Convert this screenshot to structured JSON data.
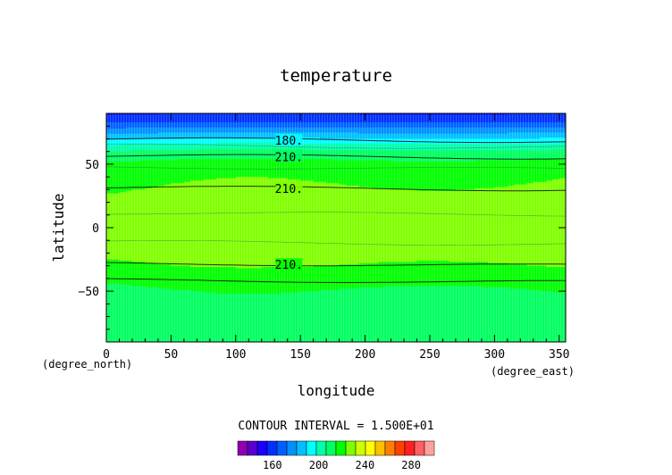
{
  "chart_data": {
    "type": "heatmap",
    "title": "temperature",
    "xlabel": "longitude",
    "ylabel": "latitude",
    "x_unit": "(degree_east)",
    "y_unit": "(degree_north)",
    "xlim": [
      0,
      355
    ],
    "ylim": [
      -90,
      90
    ],
    "x_ticks": [
      0,
      50,
      100,
      150,
      200,
      250,
      300,
      350
    ],
    "y_ticks": [
      -50,
      0,
      50
    ],
    "contour_interval_text": "CONTOUR INTERVAL = 1.500E+01",
    "contour_labels": [
      {
        "text": "180.",
        "lon": 128,
        "lat": 69
      },
      {
        "text": "210.",
        "lon": 128,
        "lat": 56
      },
      {
        "text": "210.",
        "lon": 128,
        "lat": 31
      },
      {
        "text": "210.",
        "lon": 128,
        "lat": -29
      }
    ],
    "field_profile": {
      "lat": [
        90,
        85,
        80,
        75,
        70,
        65,
        60,
        55,
        50,
        40,
        30,
        20,
        10,
        0,
        -10,
        -20,
        -30,
        -40,
        -50,
        -60,
        -70,
        -80,
        -90
      ],
      "temp": [
        155,
        160,
        170,
        180,
        190,
        200,
        208,
        213,
        218,
        222,
        224,
        226,
        228,
        231,
        229,
        226,
        223,
        218,
        214,
        212,
        209,
        208,
        207
      ]
    },
    "colorbar": {
      "colors": [
        "#9000b0",
        "#5a00cc",
        "#1a00ff",
        "#0030ff",
        "#0060ff",
        "#0090ff",
        "#00c0ff",
        "#00ffff",
        "#00ffaa",
        "#00ff60",
        "#00ff00",
        "#80ff00",
        "#ccff00",
        "#ffff00",
        "#ffc000",
        "#ff8000",
        "#ff4000",
        "#ff2020",
        "#ff6060",
        "#ffa0a0"
      ],
      "tick_labels": [
        "160",
        "200",
        "240",
        "280"
      ],
      "tick_values": [
        160,
        200,
        240,
        280
      ],
      "range": [
        130,
        300
      ]
    }
  }
}
